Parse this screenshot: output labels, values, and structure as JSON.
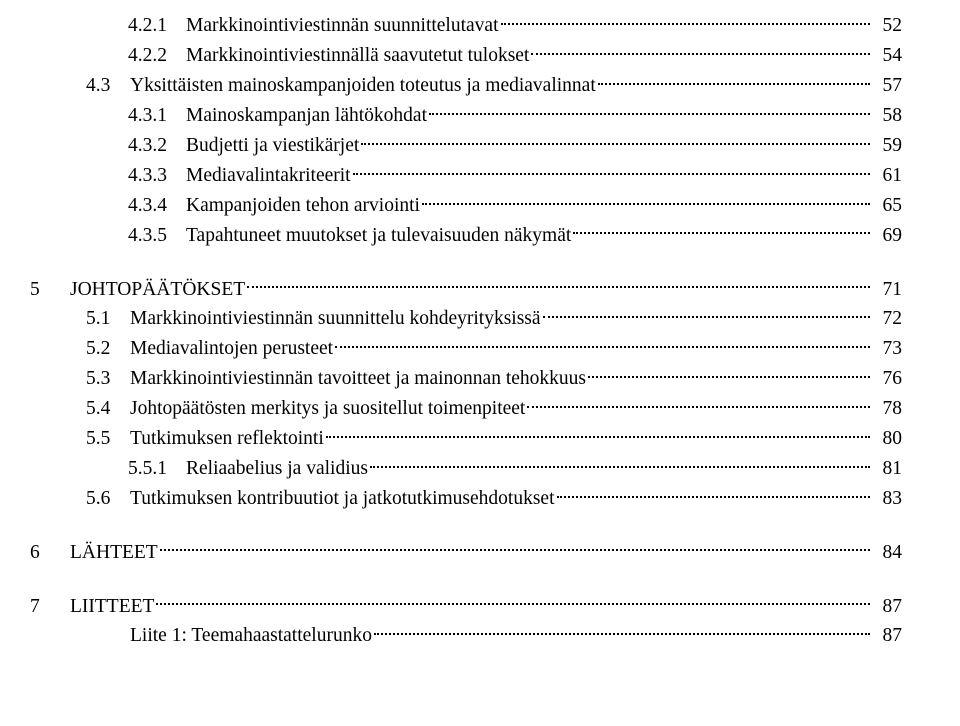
{
  "font": {
    "family": "Book Antiqua / Palatino",
    "size_pt": 15,
    "color": "#000000"
  },
  "background_color": "#ffffff",
  "toc": [
    {
      "level": 2,
      "num": "4.2.1",
      "title": "Markkinointiviestinnän suunnittelutavat",
      "page": "52"
    },
    {
      "level": 2,
      "num": "4.2.2",
      "title": "Markkinointiviestinnällä saavutetut tulokset",
      "page": "54"
    },
    {
      "level": 1,
      "num": "4.3",
      "title": "Yksittäisten mainoskampanjoiden toteutus ja mediavalinnat",
      "page": "57"
    },
    {
      "level": 2,
      "num": "4.3.1",
      "title": "Mainoskampanjan lähtökohdat",
      "page": "58"
    },
    {
      "level": 2,
      "num": "4.3.2",
      "title": "Budjetti ja viestikärjet",
      "page": "59"
    },
    {
      "level": 2,
      "num": "4.3.3",
      "title": "Mediavalintakriteerit",
      "page": "61"
    },
    {
      "level": 2,
      "num": "4.3.4",
      "title": "Kampanjoiden tehon arviointi",
      "page": "65"
    },
    {
      "level": 2,
      "num": "4.3.5",
      "title": "Tapahtuneet muutokset ja tulevaisuuden näkymät",
      "page": "69"
    },
    {
      "spacer": true
    },
    {
      "level": 0,
      "num": "5",
      "title": "JOHTOPÄÄTÖKSET",
      "page": "71"
    },
    {
      "level": 1,
      "num": "5.1",
      "title": "Markkinointiviestinnän suunnittelu kohdeyrityksissä",
      "page": "72"
    },
    {
      "level": 1,
      "num": "5.2",
      "title": "Mediavalintojen perusteet",
      "page": "73"
    },
    {
      "level": 1,
      "num": "5.3",
      "title": "Markkinointiviestinnän tavoitteet ja mainonnan tehokkuus",
      "page": "76"
    },
    {
      "level": 1,
      "num": "5.4",
      "title": "Johtopäätösten merkitys ja suositellut toimenpiteet",
      "page": "78"
    },
    {
      "level": 1,
      "num": "5.5",
      "title": "Tutkimuksen reflektointi",
      "page": "80"
    },
    {
      "level": 2,
      "num": "5.5.1",
      "title": "Reliaabelius ja validius",
      "page": "81"
    },
    {
      "level": 1,
      "num": "5.6",
      "title": "Tutkimuksen kontribuutiot ja jatkotutkimusehdotukset",
      "page": "83"
    },
    {
      "spacer": true
    },
    {
      "level": 0,
      "num": "6",
      "title": "LÄHTEET",
      "page": "84"
    },
    {
      "spacer": true
    },
    {
      "level": 0,
      "num": "7",
      "title": "LIITTEET",
      "page": "87"
    },
    {
      "level": 1,
      "num": "",
      "title": "Liite 1: Teemahaastattelurunko",
      "page": "87"
    }
  ]
}
